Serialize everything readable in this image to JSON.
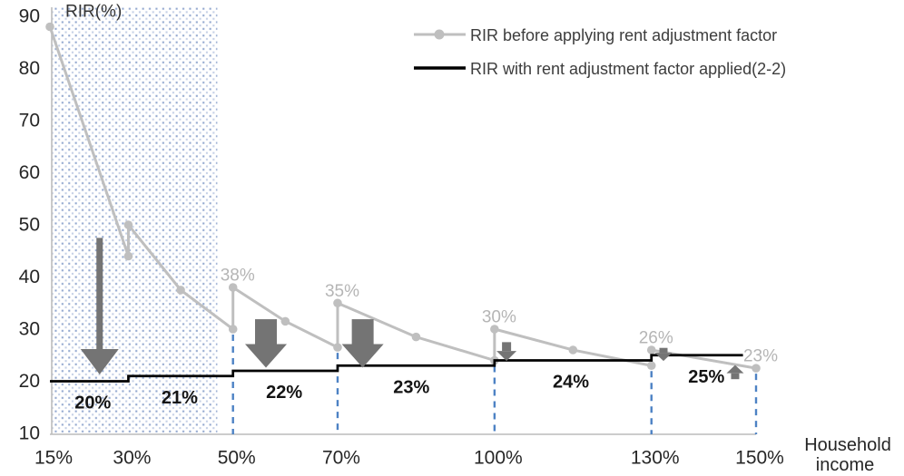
{
  "title": "RIR(%)",
  "legend": {
    "items": [
      {
        "label": "RIR before applying rent adjustment factor"
      },
      {
        "label": "RIR with rent adjustment factor applied(2-2)"
      }
    ]
  },
  "x_axis": {
    "title_line1": "Household",
    "title_line2": "income",
    "ticks": [
      {
        "label": "15%",
        "value": 15
      },
      {
        "label": "30%",
        "value": 30
      },
      {
        "label": "50%",
        "value": 50
      },
      {
        "label": "70%",
        "value": 70
      },
      {
        "label": "100%",
        "value": 100
      },
      {
        "label": "130%",
        "value": 130
      },
      {
        "label": "150%",
        "value": 150
      }
    ]
  },
  "y_axis": {
    "ticks": [
      {
        "label": "90",
        "value": 90
      },
      {
        "label": "80",
        "value": 80
      },
      {
        "label": "70",
        "value": 70
      },
      {
        "label": "60",
        "value": 60
      },
      {
        "label": "50",
        "value": 50
      },
      {
        "label": "40",
        "value": 40
      },
      {
        "label": "30",
        "value": 30
      },
      {
        "label": "20",
        "value": 20
      },
      {
        "label": "10",
        "value": 10
      }
    ]
  },
  "colors": {
    "series_before": "#bfbfbf",
    "series_after": "#000000",
    "guide_blue": "#4d82c4",
    "arrow_gray": "#747474",
    "dot_dark": "#8099c7",
    "dot_light": "#b7c4e0",
    "axis_line": "#bcbcbc",
    "label_gray": "#b5b5b5",
    "label_black": "#141414"
  },
  "chart_data": {
    "type": "line",
    "x_range": [
      15,
      150
    ],
    "y_range": [
      10,
      90
    ],
    "xlabel": "Household income",
    "ylabel": "RIR(%)",
    "grid": false,
    "legend_position": "top-right",
    "series": [
      {
        "name": "RIR before applying rent adjustment factor",
        "style": "line-with-markers",
        "points": [
          [
            15,
            88
          ],
          [
            30,
            44
          ],
          [
            30,
            50
          ],
          [
            40,
            37.5
          ],
          [
            50,
            30
          ],
          [
            50,
            38
          ],
          [
            60,
            31.5
          ],
          [
            70,
            26.5
          ],
          [
            70,
            35
          ],
          [
            85,
            28.5
          ],
          [
            100,
            24
          ],
          [
            100,
            30
          ],
          [
            115,
            26
          ],
          [
            130,
            23
          ],
          [
            130,
            26
          ],
          [
            150,
            22.5
          ]
        ]
      },
      {
        "name": "RIR with rent adjustment factor applied(2-2)",
        "style": "step-line",
        "points": [
          [
            15,
            20
          ],
          [
            30,
            20
          ],
          [
            30,
            21
          ],
          [
            50,
            21
          ],
          [
            50,
            22
          ],
          [
            70,
            22
          ],
          [
            70,
            23
          ],
          [
            100,
            23
          ],
          [
            100,
            24
          ],
          [
            130,
            24
          ],
          [
            130,
            25
          ],
          [
            147.5,
            25
          ]
        ]
      }
    ],
    "point_labels": [
      {
        "text": "38%",
        "x": 50,
        "y": 38
      },
      {
        "text": "35%",
        "x": 70,
        "y": 35
      },
      {
        "text": "30%",
        "x": 100,
        "y": 30
      },
      {
        "text": "26%",
        "x": 130,
        "y": 26
      },
      {
        "text": "23%",
        "x": 150,
        "y": 22.5
      }
    ],
    "step_labels": [
      {
        "text": "20%",
        "x": 23.2,
        "step": 20
      },
      {
        "text": "21%",
        "x": 39.8,
        "step": 21
      },
      {
        "text": "22%",
        "x": 59.8,
        "step": 22
      },
      {
        "text": "23%",
        "x": 84.1,
        "step": 23
      },
      {
        "text": "24%",
        "x": 114.6,
        "step": 24
      },
      {
        "text": "25%",
        "x": 140.5,
        "step": 25
      }
    ],
    "dashed_guides": [
      {
        "x": 50,
        "y_top": 30
      },
      {
        "x": 70,
        "y_top": 26.5
      },
      {
        "x": 100,
        "y_top": 24
      },
      {
        "x": 130,
        "y_top": 23
      },
      {
        "x": 150,
        "y_top": 22.5
      }
    ],
    "shaded_region": {
      "x_from": 15,
      "x_to": 47,
      "style": "blue-dot-pattern"
    },
    "arrows": [
      {
        "dir": "down",
        "x": 24.5,
        "v_from": 47.5,
        "v_to": 21.3,
        "size": "tall"
      },
      {
        "dir": "down",
        "x": 56.3,
        "v_from": 31.9,
        "v_to": 22.6,
        "size": "wide"
      },
      {
        "dir": "down",
        "x": 74.8,
        "v_from": 31.9,
        "v_to": 22.6,
        "size": "wide"
      },
      {
        "dir": "down",
        "x": 102.3,
        "v_from": 27.5,
        "v_to": 23.9,
        "size": "small"
      },
      {
        "dir": "down",
        "x": 132.3,
        "v_from": 26.4,
        "v_to": 23.9,
        "size": "tiny"
      },
      {
        "dir": "up",
        "x": 146.0,
        "v_from": 20.4,
        "v_to": 23.1,
        "size": "tiny"
      }
    ]
  }
}
